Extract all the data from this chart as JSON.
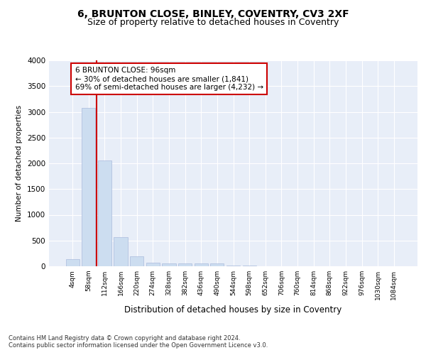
{
  "title1": "6, BRUNTON CLOSE, BINLEY, COVENTRY, CV3 2XF",
  "title2": "Size of property relative to detached houses in Coventry",
  "xlabel": "Distribution of detached houses by size in Coventry",
  "ylabel": "Number of detached properties",
  "categories": [
    "4sqm",
    "58sqm",
    "112sqm",
    "166sqm",
    "220sqm",
    "274sqm",
    "328sqm",
    "382sqm",
    "436sqm",
    "490sqm",
    "544sqm",
    "598sqm",
    "652sqm",
    "706sqm",
    "760sqm",
    "814sqm",
    "868sqm",
    "922sqm",
    "976sqm",
    "1030sqm",
    "1084sqm"
  ],
  "values": [
    140,
    3080,
    2060,
    560,
    200,
    75,
    62,
    52,
    52,
    52,
    18,
    8,
    5,
    3,
    2,
    2,
    1,
    1,
    1,
    1,
    1
  ],
  "bar_color": "#ccddf0",
  "bar_edge_color": "#aabbdd",
  "vline_color": "#cc0000",
  "ylim": [
    0,
    4000
  ],
  "yticks": [
    0,
    500,
    1000,
    1500,
    2000,
    2500,
    3000,
    3500,
    4000
  ],
  "annotation_text": "6 BRUNTON CLOSE: 96sqm\n← 30% of detached houses are smaller (1,841)\n69% of semi-detached houses are larger (4,232) →",
  "annotation_box_color": "#ffffff",
  "annotation_box_edge": "#cc0000",
  "footer1": "Contains HM Land Registry data © Crown copyright and database right 2024.",
  "footer2": "Contains public sector information licensed under the Open Government Licence v3.0.",
  "bg_color": "#e8eef8",
  "grid_color": "#ffffff",
  "fig_bg_color": "#ffffff",
  "title1_fontsize": 10,
  "title2_fontsize": 9
}
